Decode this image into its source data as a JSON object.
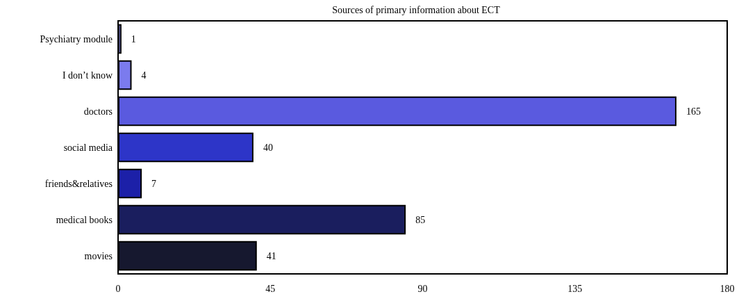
{
  "chart_data": {
    "type": "bar",
    "orientation": "horizontal",
    "title": "Sources of primary information about ECT",
    "categories": [
      "Psychiatry module",
      "I don’t know",
      "doctors",
      "social media",
      "friends&relatives",
      "medical books",
      "movies"
    ],
    "values": [
      1,
      4,
      165,
      40,
      7,
      85,
      41
    ],
    "colors": [
      "#8c8cf0",
      "#7b7bee",
      "#5a5adf",
      "#2d35c8",
      "#1c20a8",
      "#1a1e5e",
      "#16182f"
    ],
    "xlim": [
      0,
      180
    ],
    "xticks": [
      0,
      45,
      90,
      135,
      180
    ],
    "data_labels": true
  }
}
